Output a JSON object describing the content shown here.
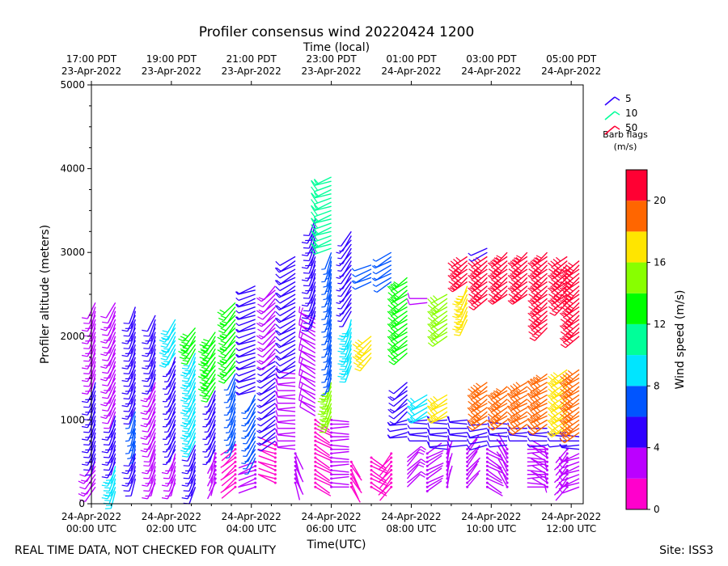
{
  "chart_data": {
    "type": "wind-barb profile",
    "title": "Profiler consensus wind 20220424 1200",
    "top_xlabel": "Time (local)",
    "xlabel": "Time(UTC)",
    "ylabel": "Profiler altitude (meters)",
    "ylim": [
      0,
      5000
    ],
    "yticks": [
      "0",
      "1000",
      "2000",
      "3000",
      "4000",
      "5000"
    ],
    "x_hours_utc": [
      0,
      12.3
    ],
    "bottom_ticks": [
      {
        "h": 0,
        "date": "24-Apr-2022",
        "time": "00:00 UTC"
      },
      {
        "h": 2,
        "date": "24-Apr-2022",
        "time": "02:00 UTC"
      },
      {
        "h": 4,
        "date": "24-Apr-2022",
        "time": "04:00 UTC"
      },
      {
        "h": 6,
        "date": "24-Apr-2022",
        "time": "06:00 UTC"
      },
      {
        "h": 8,
        "date": "24-Apr-2022",
        "time": "08:00 UTC"
      },
      {
        "h": 10,
        "date": "24-Apr-2022",
        "time": "10:00 UTC"
      },
      {
        "h": 12,
        "date": "24-Apr-2022",
        "time": "12:00 UTC"
      }
    ],
    "top_ticks": [
      {
        "h": 0,
        "time": "17:00 PDT",
        "date": "23-Apr-2022"
      },
      {
        "h": 2,
        "time": "19:00 PDT",
        "date": "23-Apr-2022"
      },
      {
        "h": 4,
        "time": "21:00 PDT",
        "date": "23-Apr-2022"
      },
      {
        "h": 6,
        "time": "23:00 PDT",
        "date": "23-Apr-2022"
      },
      {
        "h": 8,
        "time": "01:00 PDT",
        "date": "24-Apr-2022"
      },
      {
        "h": 10,
        "time": "03:00 PDT",
        "date": "24-Apr-2022"
      },
      {
        "h": 12,
        "time": "05:00 PDT",
        "date": "24-Apr-2022"
      }
    ],
    "barb_legend": [
      {
        "label": "5",
        "color": "#2f00ff"
      },
      {
        "label": "10",
        "color": "#00ff99"
      },
      {
        "label": "50",
        "color": "#ff0033"
      }
    ],
    "barb_legend_title": "Barb flags",
    "barb_legend_units": "(m/s)",
    "colorbar_label": "Wind speed (m/s)",
    "colorbar_range": [
      0,
      22
    ],
    "colorbar_ticks": [
      "0",
      "4",
      "8",
      "12",
      "16",
      "20"
    ],
    "colorbar_colors": [
      "#ff00cc",
      "#bb00ff",
      "#2f00ff",
      "#0055ff",
      "#00e5ff",
      "#00ff99",
      "#00ff00",
      "#88ff00",
      "#ffe500",
      "#ff6600",
      "#ff0033"
    ],
    "columns": [
      {
        "h": 0.1,
        "segments": [
          {
            "from": 200,
            "to": 500,
            "speed": 2.5,
            "dir": 215
          },
          {
            "from": 550,
            "to": 1450,
            "speed": 4.5,
            "dir": 200
          },
          {
            "from": 1500,
            "to": 2400,
            "speed": 3.5,
            "dir": 200
          }
        ]
      },
      {
        "h": 0.6,
        "segments": [
          {
            "from": 150,
            "to": 450,
            "speed": 8.0,
            "dir": 200
          },
          {
            "from": 500,
            "to": 1050,
            "speed": 4.8,
            "dir": 200
          },
          {
            "from": 1100,
            "to": 2400,
            "speed": 3.0,
            "dir": 205
          }
        ]
      },
      {
        "h": 1.1,
        "segments": [
          {
            "from": 300,
            "to": 650,
            "speed": 4.5,
            "dir": 200
          },
          {
            "from": 700,
            "to": 1100,
            "speed": 6.0,
            "dir": 195
          },
          {
            "from": 1150,
            "to": 2350,
            "speed": 4.5,
            "dir": 200
          }
        ]
      },
      {
        "h": 1.6,
        "segments": [
          {
            "from": 250,
            "to": 650,
            "speed": 2.5,
            "dir": 200
          },
          {
            "from": 700,
            "to": 1450,
            "speed": 3.5,
            "dir": 205
          },
          {
            "from": 1500,
            "to": 2250,
            "speed": 4.8,
            "dir": 200
          }
        ]
      },
      {
        "h": 2.1,
        "segments": [
          {
            "from": 250,
            "to": 600,
            "speed": 3.0,
            "dir": 200
          },
          {
            "from": 650,
            "to": 1750,
            "speed": 5.0,
            "dir": 205
          },
          {
            "from": 1800,
            "to": 2200,
            "speed": 8.5,
            "dir": 210
          }
        ]
      },
      {
        "h": 2.6,
        "segments": [
          {
            "from": 200,
            "to": 700,
            "speed": 4.5,
            "dir": 200
          },
          {
            "from": 750,
            "to": 1800,
            "speed": 8.5,
            "dir": 205
          },
          {
            "from": 1850,
            "to": 2100,
            "speed": 13.5,
            "dir": 215
          }
        ]
      },
      {
        "h": 3.1,
        "segments": [
          {
            "from": 250,
            "to": 600,
            "speed": 2.0,
            "dir": 200
          },
          {
            "from": 650,
            "to": 1350,
            "speed": 5.0,
            "dir": 205
          },
          {
            "from": 1400,
            "to": 2050,
            "speed": 12.5,
            "dir": 215
          }
        ]
      },
      {
        "h": 3.6,
        "segments": [
          {
            "from": 200,
            "to": 700,
            "speed": 1.8,
            "dir": 230
          },
          {
            "from": 750,
            "to": 1550,
            "speed": 6.5,
            "dir": 200
          },
          {
            "from": 1600,
            "to": 2400,
            "speed": 12.0,
            "dir": 220
          }
        ]
      },
      {
        "h": 4.1,
        "segments": [
          {
            "from": 200,
            "to": 500,
            "speed": 2.0,
            "dir": 250
          },
          {
            "from": 550,
            "to": 1300,
            "speed": 6.0,
            "dir": 210
          },
          {
            "from": 1350,
            "to": 2600,
            "speed": 5.5,
            "dir": 250
          }
        ]
      },
      {
        "h": 4.6,
        "segments": [
          {
            "from": 250,
            "to": 700,
            "speed": 1.5,
            "dir": 290
          },
          {
            "from": 750,
            "to": 1700,
            "speed": 5.0,
            "dir": 235
          },
          {
            "from": 1750,
            "to": 2600,
            "speed": 3.5,
            "dir": 225
          }
        ]
      },
      {
        "h": 5.1,
        "segments": [
          {
            "from": 250,
            "to": 600,
            "speed": 2.0,
            "dir": 160
          },
          {
            "from": 650,
            "to": 1550,
            "speed": 3.0,
            "dir": 270
          },
          {
            "from": 1600,
            "to": 2950,
            "speed": 4.0,
            "dir": 240
          }
        ]
      },
      {
        "h": 5.6,
        "segments": [
          {
            "from": 200,
            "to": 1000,
            "speed": 1.5,
            "dir": 120
          },
          {
            "from": 1050,
            "to": 2200,
            "speed": 3.5,
            "dir": 300
          },
          {
            "from": 2250,
            "to": 3400,
            "speed": 4.5,
            "dir": 200
          }
        ]
      },
      {
        "h": 6.0,
        "segments": [
          {
            "from": 200,
            "to": 1000,
            "speed": 2.0,
            "dir": 90
          },
          {
            "from": 1050,
            "to": 1450,
            "speed": 14.0,
            "dir": 200
          },
          {
            "from": 1500,
            "to": 3000,
            "speed": 6.5,
            "dir": 195
          },
          {
            "from": 3050,
            "to": 3900,
            "speed": 11.0,
            "dir": 250
          }
        ]
      },
      {
        "h": 6.5,
        "segments": [
          {
            "from": 200,
            "to": 500,
            "speed": 1.5,
            "dir": 150
          },
          {
            "from": 1650,
            "to": 2200,
            "speed": 8.5,
            "dir": 200
          },
          {
            "from": 2300,
            "to": 3250,
            "speed": 5.5,
            "dir": 215
          }
        ]
      },
      {
        "h": 7.0,
        "segments": [
          {
            "from": 200,
            "to": 550,
            "speed": 1.5,
            "dir": 120
          },
          {
            "from": 1750,
            "to": 2000,
            "speed": 17.0,
            "dir": 225
          },
          {
            "from": 2650,
            "to": 2850,
            "speed": 6.0,
            "dir": 245
          }
        ]
      },
      {
        "h": 7.5,
        "segments": [
          {
            "from": 200,
            "to": 600,
            "speed": 1.5,
            "dir": 220
          },
          {
            "from": 2650,
            "to": 3000,
            "speed": 6.0,
            "dir": 240
          }
        ]
      },
      {
        "h": 7.9,
        "segments": [
          {
            "from": 200,
            "to": 550,
            "speed": 2.5,
            "dir": 45
          },
          {
            "from": 800,
            "to": 1000,
            "speed": 5.0,
            "dir": 260
          },
          {
            "from": 1100,
            "to": 1450,
            "speed": 4.0,
            "dir": 230
          },
          {
            "from": 1800,
            "to": 2700,
            "speed": 12.5,
            "dir": 235
          }
        ]
      },
      {
        "h": 8.4,
        "segments": [
          {
            "from": 150,
            "to": 600,
            "speed": 2.0,
            "dir": 60
          },
          {
            "from": 750,
            "to": 1000,
            "speed": 5.0,
            "dir": 270
          },
          {
            "from": 1050,
            "to": 1300,
            "speed": 9.5,
            "dir": 240
          },
          {
            "from": 2400,
            "to": 2450,
            "speed": 3.0,
            "dir": 270
          }
        ]
      },
      {
        "h": 8.9,
        "segments": [
          {
            "from": 200,
            "to": 600,
            "speed": 2.0,
            "dir": 10
          },
          {
            "from": 650,
            "to": 1000,
            "speed": 4.5,
            "dir": 270
          },
          {
            "from": 1050,
            "to": 1300,
            "speed": 16.5,
            "dir": 240
          },
          {
            "from": 2000,
            "to": 2500,
            "speed": 15.0,
            "dir": 235
          }
        ]
      },
      {
        "h": 9.4,
        "segments": [
          {
            "from": 200,
            "to": 650,
            "speed": 2.0,
            "dir": 40
          },
          {
            "from": 700,
            "to": 1000,
            "speed": 4.5,
            "dir": 270
          },
          {
            "from": 2200,
            "to": 2600,
            "speed": 16.5,
            "dir": 205
          },
          {
            "from": 2650,
            "to": 2950,
            "speed": 21.0,
            "dir": 230
          }
        ]
      },
      {
        "h": 9.9,
        "segments": [
          {
            "from": 200,
            "to": 650,
            "speed": 2.0,
            "dir": 120
          },
          {
            "from": 700,
            "to": 950,
            "speed": 4.5,
            "dir": 260
          },
          {
            "from": 1000,
            "to": 1450,
            "speed": 19.0,
            "dir": 235
          },
          {
            "from": 2450,
            "to": 2950,
            "speed": 21.0,
            "dir": 230
          },
          {
            "from": 3000,
            "to": 3050,
            "speed": 5.0,
            "dir": 240
          }
        ]
      },
      {
        "h": 10.4,
        "segments": [
          {
            "from": 200,
            "to": 650,
            "speed": 2.0,
            "dir": 330
          },
          {
            "from": 700,
            "to": 950,
            "speed": 4.5,
            "dir": 270
          },
          {
            "from": 1000,
            "to": 1400,
            "speed": 18.0,
            "dir": 235
          },
          {
            "from": 2500,
            "to": 3000,
            "speed": 21.5,
            "dir": 230
          }
        ]
      },
      {
        "h": 10.9,
        "segments": [
          {
            "from": 200,
            "to": 700,
            "speed": 2.5,
            "dir": 90
          },
          {
            "from": 750,
            "to": 900,
            "speed": 4.5,
            "dir": 270
          },
          {
            "from": 950,
            "to": 1450,
            "speed": 18.5,
            "dir": 240
          },
          {
            "from": 2500,
            "to": 3000,
            "speed": 21.0,
            "dir": 230
          }
        ]
      },
      {
        "h": 11.4,
        "segments": [
          {
            "from": 200,
            "to": 650,
            "speed": 2.0,
            "dir": 300
          },
          {
            "from": 700,
            "to": 900,
            "speed": 5.0,
            "dir": 270
          },
          {
            "from": 950,
            "to": 1550,
            "speed": 18.5,
            "dir": 240
          },
          {
            "from": 2100,
            "to": 3000,
            "speed": 21.0,
            "dir": 230
          }
        ]
      },
      {
        "h": 11.9,
        "segments": [
          {
            "from": 200,
            "to": 650,
            "speed": 2.0,
            "dir": 220
          },
          {
            "from": 700,
            "to": 850,
            "speed": 5.0,
            "dir": 270
          },
          {
            "from": 900,
            "to": 1600,
            "speed": 16.5,
            "dir": 235
          },
          {
            "from": 2400,
            "to": 2950,
            "speed": 21.0,
            "dir": 230
          }
        ]
      },
      {
        "h": 12.2,
        "segments": [
          {
            "from": 200,
            "to": 600,
            "speed": 2.5,
            "dir": 250
          },
          {
            "from": 650,
            "to": 800,
            "speed": 5.0,
            "dir": 270
          },
          {
            "from": 850,
            "to": 1600,
            "speed": 19.0,
            "dir": 235
          },
          {
            "from": 2000,
            "to": 2900,
            "speed": 21.0,
            "dir": 230
          }
        ]
      }
    ]
  },
  "footer": {
    "left": "REAL TIME DATA, NOT CHECKED FOR QUALITY",
    "right": "Site: ISS3"
  }
}
